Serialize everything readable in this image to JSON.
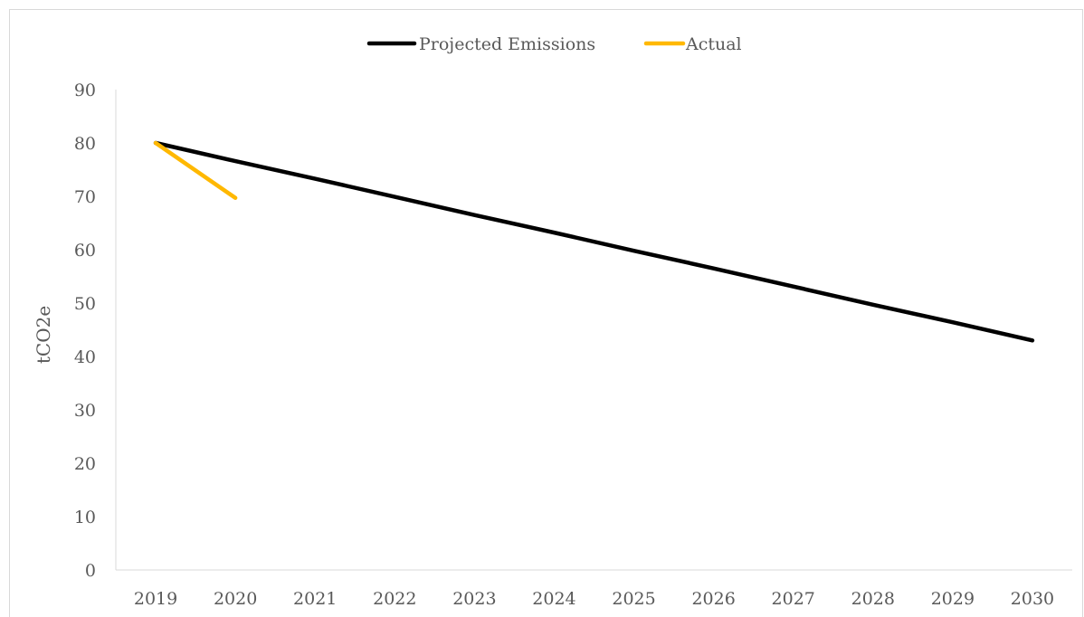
{
  "chart_data": {
    "type": "line",
    "title": "",
    "xlabel": "",
    "ylabel": "tCO2e",
    "categories": [
      "2019",
      "2020",
      "2021",
      "2022",
      "2023",
      "2024",
      "2025",
      "2026",
      "2027",
      "2028",
      "2029",
      "2030"
    ],
    "ylim": [
      0,
      90
    ],
    "yticks": [
      "0",
      "10",
      "20",
      "30",
      "40",
      "50",
      "60",
      "70",
      "80",
      "90"
    ],
    "grid": false,
    "legend_position": "top",
    "series": [
      {
        "name": "Projected Emissions",
        "color": "#000000",
        "values": [
          80,
          76.6,
          73.3,
          69.9,
          66.5,
          63.2,
          59.8,
          56.5,
          53.1,
          49.7,
          46.4,
          43
        ]
      },
      {
        "name": "Actual",
        "color": "#ffb800",
        "values": [
          80,
          69.7,
          null,
          null,
          null,
          null,
          null,
          null,
          null,
          null,
          null,
          null
        ]
      }
    ]
  }
}
